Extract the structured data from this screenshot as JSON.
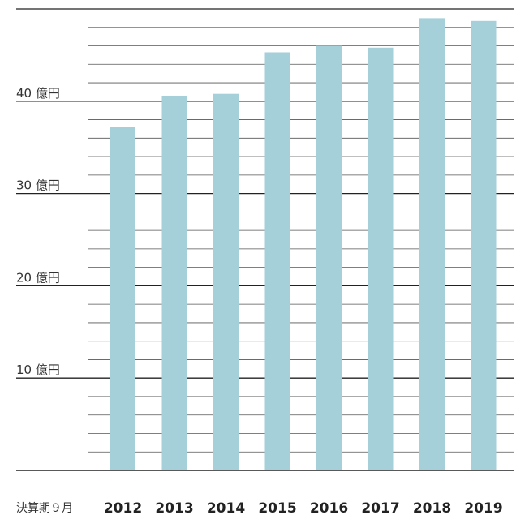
{
  "chart_data": {
    "type": "bar",
    "title": "",
    "xlabel": "決算期９月",
    "ylabel": "",
    "categories": [
      "2012",
      "2013",
      "2014",
      "2015",
      "2016",
      "2017",
      "2018",
      "2019"
    ],
    "values": [
      37.2,
      40.6,
      40.8,
      45.3,
      46.0,
      45.8,
      49.0,
      48.7
    ],
    "ylim": [
      0,
      50
    ],
    "y_ticks": [
      {
        "value": 10,
        "label": "10 億円"
      },
      {
        "value": 20,
        "label": "20 億円"
      },
      {
        "value": 30,
        "label": "30 億円"
      },
      {
        "value": 40,
        "label": "40 億円"
      }
    ],
    "bar_color": "#a5cfd9",
    "grid": true,
    "minor_grid_step": 2,
    "legend": "none"
  }
}
